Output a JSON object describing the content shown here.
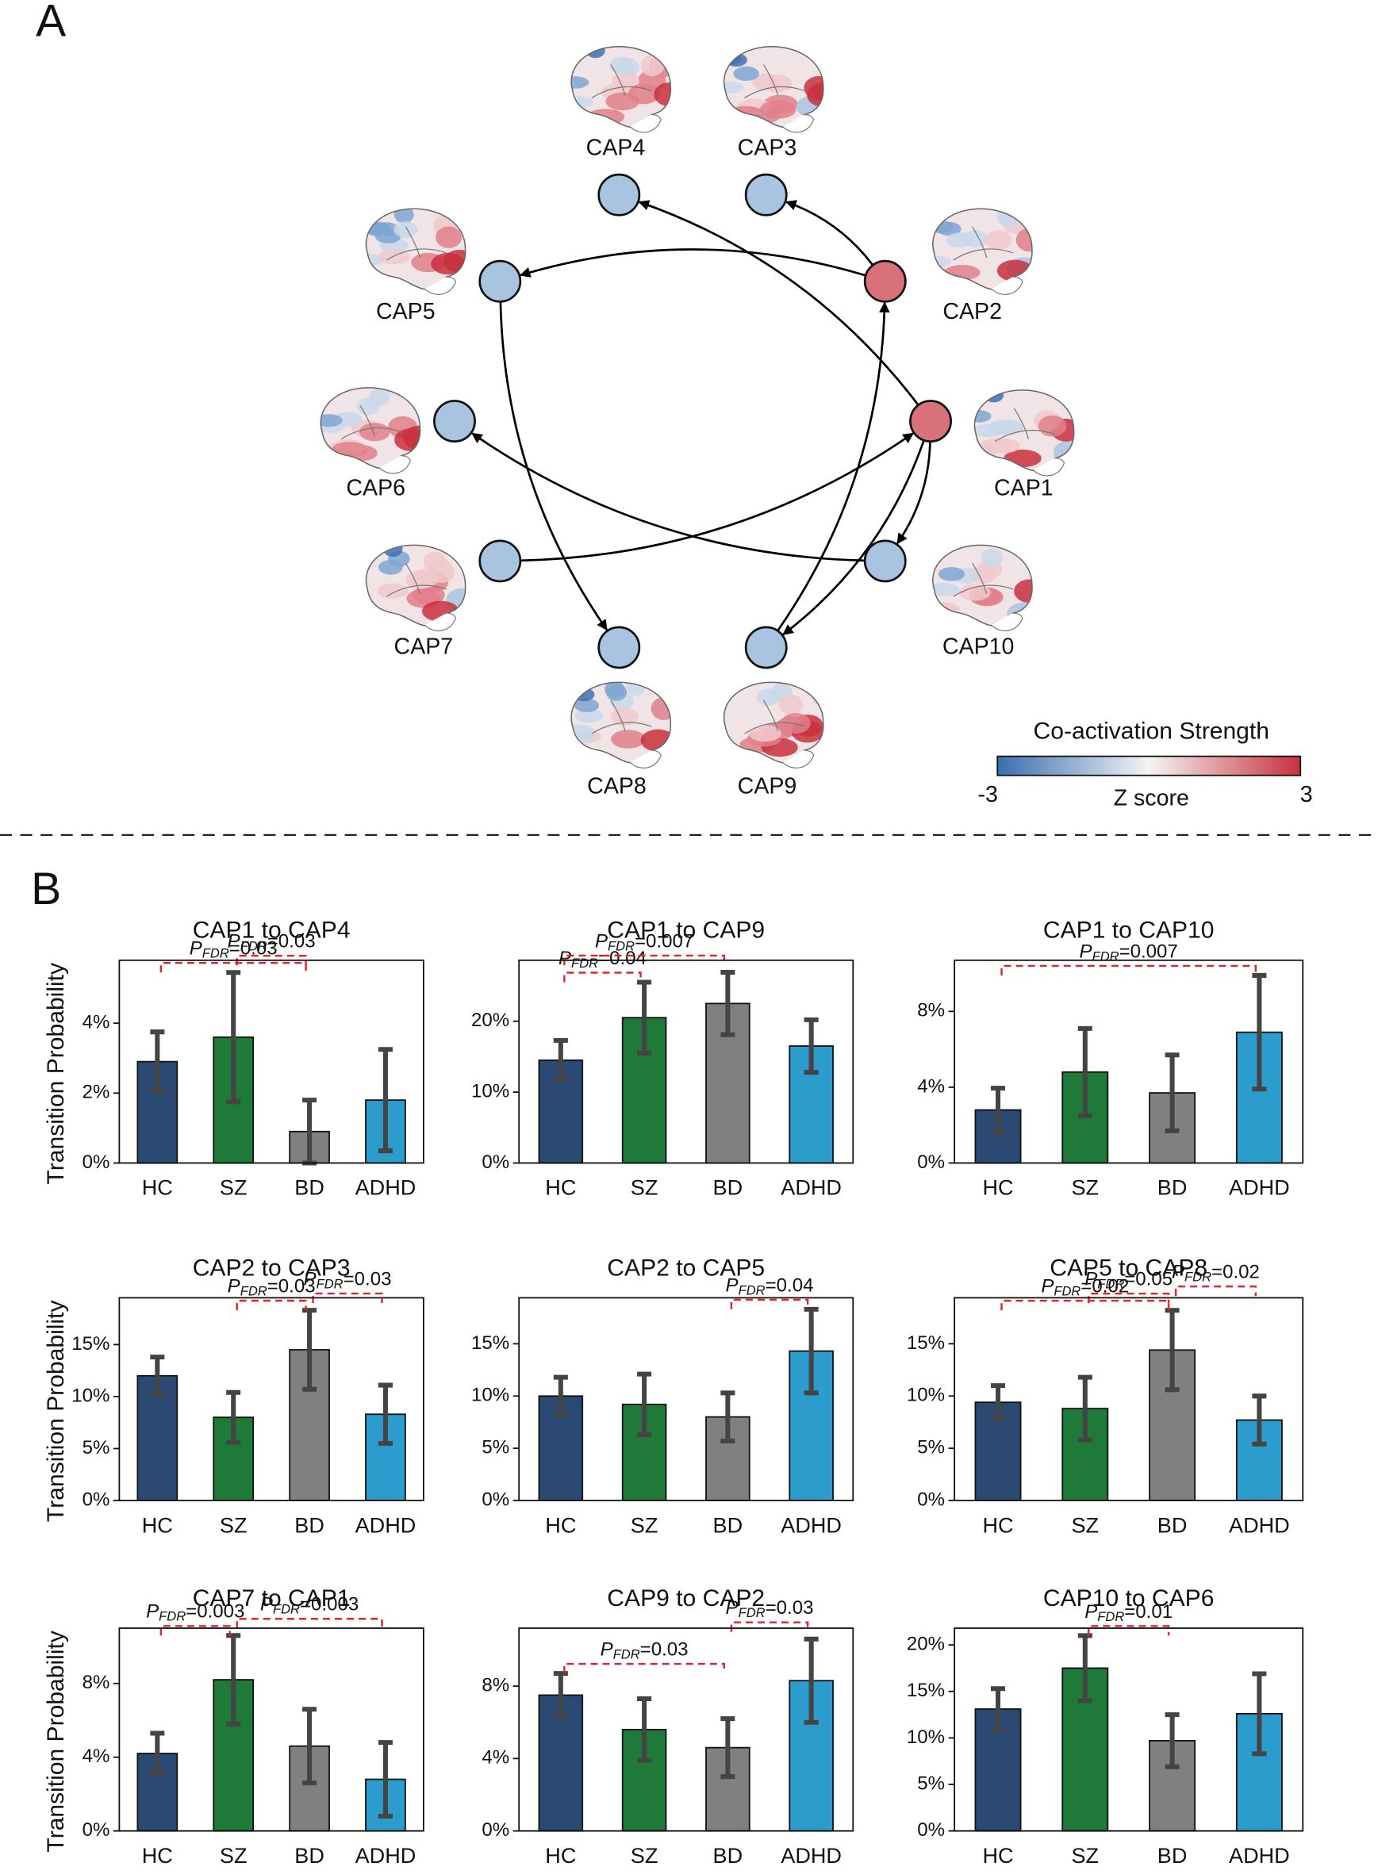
{
  "panels": {
    "a": "A",
    "b": "B"
  },
  "diagram": {
    "nodes": [
      {
        "label": "CAP1",
        "color": "#d9717b"
      },
      {
        "label": "CAP2",
        "color": "#d9717b"
      },
      {
        "label": "CAP3",
        "color": "#a9c4e1"
      },
      {
        "label": "CAP4",
        "color": "#a9c4e1"
      },
      {
        "label": "CAP5",
        "color": "#a9c4e1"
      },
      {
        "label": "CAP6",
        "color": "#a9c4e1"
      },
      {
        "label": "CAP7",
        "color": "#a9c4e1"
      },
      {
        "label": "CAP8",
        "color": "#a9c4e1"
      },
      {
        "label": "CAP9",
        "color": "#a9c4e1"
      },
      {
        "label": "CAP10",
        "color": "#a9c4e1"
      }
    ],
    "edges": [
      {
        "from": "CAP1",
        "to": "CAP4"
      },
      {
        "from": "CAP1",
        "to": "CAP9"
      },
      {
        "from": "CAP1",
        "to": "CAP10"
      },
      {
        "from": "CAP2",
        "to": "CAP3"
      },
      {
        "from": "CAP2",
        "to": "CAP5"
      },
      {
        "from": "CAP5",
        "to": "CAP8"
      },
      {
        "from": "CAP7",
        "to": "CAP1"
      },
      {
        "from": "CAP9",
        "to": "CAP2"
      },
      {
        "from": "CAP10",
        "to": "CAP6"
      }
    ],
    "colorbar": {
      "title": "Co-activation Strength",
      "label": "Z score",
      "min": -3,
      "max": 3,
      "colors": [
        "#3a6eb0",
        "#f4f4f4",
        "#c8303d"
      ]
    }
  },
  "p_label": {
    "symbol": "P",
    "subscript": "FDR"
  },
  "chart_data": [
    {
      "type": "bar",
      "title": "CAP1 to CAP4",
      "ylabel": "Transition Probability",
      "categories": [
        "HC",
        "SZ",
        "BD",
        "ADHD"
      ],
      "values": [
        2.9,
        3.6,
        0.9,
        1.8
      ],
      "errors": [
        0.85,
        1.85,
        0.9,
        1.45
      ],
      "colors": [
        "#2a4a73",
        "#1f7a3a",
        "#808080",
        "#2b9ccb"
      ],
      "ylim": [
        0,
        5.8
      ],
      "yticks": [
        {
          "value": 0,
          "label": "0%"
        },
        {
          "value": 2,
          "label": "2%"
        },
        {
          "value": 4,
          "label": "4%"
        }
      ],
      "annotations": [
        {
          "pair": [
            0,
            2
          ],
          "text": "=0.03"
        },
        {
          "pair": [
            1,
            2
          ],
          "text": "=0.03"
        }
      ]
    },
    {
      "type": "bar",
      "title": "CAP1 to CAP9",
      "categories": [
        "HC",
        "SZ",
        "BD",
        "ADHD"
      ],
      "values": [
        14.5,
        20.5,
        22.5,
        16.5
      ],
      "errors": [
        2.8,
        5,
        4.4,
        3.7
      ],
      "colors": [
        "#2a4a73",
        "#1f7a3a",
        "#808080",
        "#2b9ccb"
      ],
      "ylim": [
        0,
        28.6
      ],
      "yticks": [
        {
          "value": 0,
          "label": "0%"
        },
        {
          "value": 10,
          "label": "10%"
        },
        {
          "value": 20,
          "label": "20%"
        }
      ],
      "annotations": [
        {
          "pair": [
            0,
            1
          ],
          "text": "=0.04"
        },
        {
          "pair": [
            0,
            2
          ],
          "text": "=0.007"
        }
      ]
    },
    {
      "type": "bar",
      "title": "CAP1 to CAP10",
      "categories": [
        "HC",
        "SZ",
        "BD",
        "ADHD"
      ],
      "values": [
        2.8,
        4.8,
        3.7,
        6.9
      ],
      "errors": [
        1.15,
        2.3,
        2,
        3
      ],
      "colors": [
        "#2a4a73",
        "#1f7a3a",
        "#808080",
        "#2b9ccb"
      ],
      "ylim": [
        0,
        10.7
      ],
      "yticks": [
        {
          "value": 0,
          "label": "0%"
        },
        {
          "value": 4,
          "label": "4%"
        },
        {
          "value": 8,
          "label": "8%"
        }
      ],
      "annotations": [
        {
          "pair": [
            0,
            3
          ],
          "text": "=0.007"
        }
      ]
    },
    {
      "type": "bar",
      "title": "CAP2 to CAP3",
      "ylabel": "Transition Probability",
      "categories": [
        "HC",
        "SZ",
        "BD",
        "ADHD"
      ],
      "values": [
        12,
        8,
        14.5,
        8.3
      ],
      "errors": [
        1.8,
        2.4,
        3.8,
        2.8
      ],
      "colors": [
        "#2a4a73",
        "#1f7a3a",
        "#808080",
        "#2b9ccb"
      ],
      "ylim": [
        0,
        19.5
      ],
      "yticks": [
        {
          "value": 0,
          "label": "0%"
        },
        {
          "value": 5,
          "label": "5%"
        },
        {
          "value": 10,
          "label": "10%"
        },
        {
          "value": 15,
          "label": "15%"
        }
      ],
      "annotations": [
        {
          "pair": [
            1,
            2
          ],
          "text": "=0.03"
        },
        {
          "pair": [
            2,
            3
          ],
          "text": "=0.03"
        }
      ]
    },
    {
      "type": "bar",
      "title": "CAP2 to CAP5",
      "categories": [
        "HC",
        "SZ",
        "BD",
        "ADHD"
      ],
      "values": [
        10,
        9.2,
        8,
        14.3
      ],
      "errors": [
        1.8,
        2.9,
        2.3,
        4
      ],
      "colors": [
        "#2a4a73",
        "#1f7a3a",
        "#808080",
        "#2b9ccb"
      ],
      "ylim": [
        0,
        19.4
      ],
      "yticks": [
        {
          "value": 0,
          "label": "0%"
        },
        {
          "value": 5,
          "label": "5%"
        },
        {
          "value": 10,
          "label": "10%"
        },
        {
          "value": 15,
          "label": "15%"
        }
      ],
      "annotations": [
        {
          "pair": [
            2,
            3
          ],
          "text": "=0.04"
        }
      ]
    },
    {
      "type": "bar",
      "title": "CAP5 to CAP8",
      "categories": [
        "HC",
        "SZ",
        "BD",
        "ADHD"
      ],
      "values": [
        9.4,
        8.8,
        14.4,
        7.7
      ],
      "errors": [
        1.6,
        3,
        3.8,
        2.3
      ],
      "colors": [
        "#2a4a73",
        "#1f7a3a",
        "#808080",
        "#2b9ccb"
      ],
      "ylim": [
        0,
        19.4
      ],
      "yticks": [
        {
          "value": 0,
          "label": "0%"
        },
        {
          "value": 5,
          "label": "5%"
        },
        {
          "value": 10,
          "label": "10%"
        },
        {
          "value": 15,
          "label": "15%"
        }
      ],
      "annotations": [
        {
          "pair": [
            0,
            2
          ],
          "text": "=0.02"
        },
        {
          "pair": [
            1,
            2
          ],
          "text": "=0.05"
        },
        {
          "pair": [
            2,
            3
          ],
          "text": "=0.02"
        }
      ]
    },
    {
      "type": "bar",
      "title": "CAP7 to CAP1",
      "ylabel": "Transition Probability",
      "categories": [
        "HC",
        "SZ",
        "BD",
        "ADHD"
      ],
      "values": [
        4.2,
        8.2,
        4.6,
        2.8
      ],
      "errors": [
        1.1,
        2.4,
        2,
        2
      ],
      "colors": [
        "#2a4a73",
        "#1f7a3a",
        "#808080",
        "#2b9ccb"
      ],
      "ylim": [
        0,
        11
      ],
      "yticks": [
        {
          "value": 0,
          "label": "0%"
        },
        {
          "value": 4,
          "label": "4%"
        },
        {
          "value": 8,
          "label": "8%"
        }
      ],
      "annotations": [
        {
          "pair": [
            0,
            1
          ],
          "text": "=0.003"
        },
        {
          "pair": [
            1,
            3
          ],
          "text": "=0.003"
        }
      ]
    },
    {
      "type": "bar",
      "title": "CAP9 to CAP2",
      "categories": [
        "HC",
        "SZ",
        "BD",
        "ADHD"
      ],
      "values": [
        7.5,
        5.6,
        4.6,
        8.3
      ],
      "errors": [
        1.2,
        1.7,
        1.6,
        2.3
      ],
      "colors": [
        "#2a4a73",
        "#1f7a3a",
        "#808080",
        "#2b9ccb"
      ],
      "ylim": [
        0,
        11.2
      ],
      "yticks": [
        {
          "value": 0,
          "label": "0%"
        },
        {
          "value": 4,
          "label": "4%"
        },
        {
          "value": 8,
          "label": "8%"
        }
      ],
      "annotations": [
        {
          "pair": [
            0,
            2
          ],
          "text": "=0.03"
        },
        {
          "pair": [
            2,
            3
          ],
          "text": "=0.03"
        }
      ]
    },
    {
      "type": "bar",
      "title": "CAP10 to CAP6",
      "categories": [
        "HC",
        "SZ",
        "BD",
        "ADHD"
      ],
      "values": [
        13.1,
        17.5,
        9.7,
        12.6
      ],
      "errors": [
        2.2,
        3.5,
        2.8,
        4.3
      ],
      "colors": [
        "#2a4a73",
        "#1f7a3a",
        "#808080",
        "#2b9ccb"
      ],
      "ylim": [
        0,
        21.8
      ],
      "yticks": [
        {
          "value": 0,
          "label": "0%"
        },
        {
          "value": 5,
          "label": "5%"
        },
        {
          "value": 10,
          "label": "10%"
        },
        {
          "value": 15,
          "label": "15%"
        },
        {
          "value": 20,
          "label": "20%"
        }
      ],
      "annotations": [
        {
          "pair": [
            1,
            2
          ],
          "text": "=0.01"
        }
      ]
    }
  ]
}
